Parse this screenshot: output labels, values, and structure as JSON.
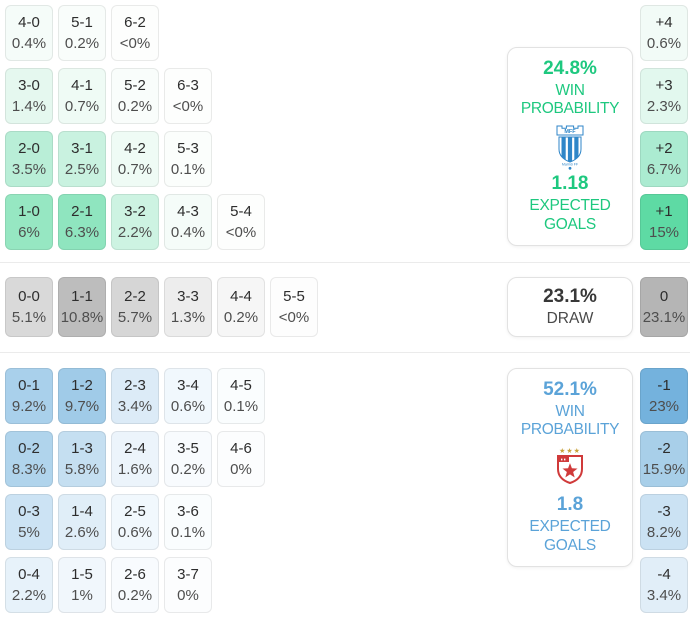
{
  "chart_data": {
    "type": "heatmap",
    "description": "Correct score probability matrix with win probability and expected goals panels",
    "home": {
      "accent": "#1ec87f",
      "panel": {
        "win_value": "24.8%",
        "win_label": "WIN PROBABILITY",
        "xg_value": "1.18",
        "xg_label": "EXPECTED GOALS"
      },
      "logo": {
        "banner": "MFF",
        "name": "Malmö FF"
      },
      "rows": [
        [
          {
            "score": "4-0",
            "pct": "0.4%",
            "bg": "#f5fcf9"
          },
          {
            "score": "5-1",
            "pct": "0.2%",
            "bg": "#f9fdfb"
          },
          {
            "score": "6-2",
            "pct": "<0%",
            "bg": "#fdfefd"
          }
        ],
        [
          {
            "score": "3-0",
            "pct": "1.4%",
            "bg": "#e5f8ef"
          },
          {
            "score": "4-1",
            "pct": "0.7%",
            "bg": "#effbf5"
          },
          {
            "score": "5-2",
            "pct": "0.2%",
            "bg": "#f9fdfb"
          },
          {
            "score": "6-3",
            "pct": "<0%",
            "bg": "#fdfefd"
          }
        ],
        [
          {
            "score": "2-0",
            "pct": "3.5%",
            "bg": "#b9eed7"
          },
          {
            "score": "3-1",
            "pct": "2.5%",
            "bg": "#c9f2e0"
          },
          {
            "score": "4-2",
            "pct": "0.7%",
            "bg": "#effbf5"
          },
          {
            "score": "5-3",
            "pct": "0.1%",
            "bg": "#fbfefc"
          }
        ],
        [
          {
            "score": "1-0",
            "pct": "6%",
            "bg": "#96e7c2"
          },
          {
            "score": "2-1",
            "pct": "6.3%",
            "bg": "#8fe5bf"
          },
          {
            "score": "3-2",
            "pct": "2.2%",
            "bg": "#cdf3e2"
          },
          {
            "score": "4-3",
            "pct": "0.4%",
            "bg": "#f5fcf9"
          },
          {
            "score": "5-4",
            "pct": "<0%",
            "bg": "#fdfefd"
          }
        ]
      ],
      "margins": [
        {
          "label": "+4",
          "pct": "0.6%",
          "bg": "#f2fbf7"
        },
        {
          "label": "+3",
          "pct": "2.3%",
          "bg": "#e2f8ee"
        },
        {
          "label": "+2",
          "pct": "6.7%",
          "bg": "#abebd1"
        },
        {
          "label": "+1",
          "pct": "15%",
          "bg": "#5edaa4"
        }
      ]
    },
    "draw": {
      "panel": {
        "value": "23.1%",
        "label": "DRAW"
      },
      "cells": [
        {
          "score": "0-0",
          "pct": "5.1%",
          "bg": "#d9d9d9"
        },
        {
          "score": "1-1",
          "pct": "10.8%",
          "bg": "#bdbdbd"
        },
        {
          "score": "2-2",
          "pct": "5.7%",
          "bg": "#d6d6d6"
        },
        {
          "score": "3-3",
          "pct": "1.3%",
          "bg": "#ededed"
        },
        {
          "score": "4-4",
          "pct": "0.2%",
          "bg": "#f6f6f6"
        },
        {
          "score": "5-5",
          "pct": "<0%",
          "bg": "#fdfdfd"
        }
      ],
      "margin": {
        "label": "0",
        "pct": "23.1%",
        "bg": "#b5b5b5"
      }
    },
    "away": {
      "accent": "#5ba3d8",
      "panel": {
        "win_value": "52.1%",
        "win_label": "WIN PROBABILITY",
        "xg_value": "1.8",
        "xg_label": "EXPECTED GOALS"
      },
      "rows": [
        [
          {
            "score": "0-1",
            "pct": "9.2%",
            "bg": "#a9d0eb"
          },
          {
            "score": "1-2",
            "pct": "9.7%",
            "bg": "#a0cbe8"
          },
          {
            "score": "2-3",
            "pct": "3.4%",
            "bg": "#dcebf7"
          },
          {
            "score": "3-4",
            "pct": "0.6%",
            "bg": "#f1f8fd"
          },
          {
            "score": "4-5",
            "pct": "0.1%",
            "bg": "#fafdfe"
          }
        ],
        [
          {
            "score": "0-2",
            "pct": "8.3%",
            "bg": "#b0d4ec"
          },
          {
            "score": "1-3",
            "pct": "5.8%",
            "bg": "#c5dff1"
          },
          {
            "score": "2-4",
            "pct": "1.6%",
            "bg": "#ecf4fb"
          },
          {
            "score": "3-5",
            "pct": "0.2%",
            "bg": "#f8fbfe"
          },
          {
            "score": "4-6",
            "pct": "0%",
            "bg": "#fcfdfe"
          }
        ],
        [
          {
            "score": "0-3",
            "pct": "5%",
            "bg": "#cce3f4"
          },
          {
            "score": "1-4",
            "pct": "2.6%",
            "bg": "#e0eef8"
          },
          {
            "score": "2-5",
            "pct": "0.6%",
            "bg": "#f1f8fd"
          },
          {
            "score": "3-6",
            "pct": "0.1%",
            "bg": "#fafdfe"
          }
        ],
        [
          {
            "score": "0-4",
            "pct": "2.2%",
            "bg": "#e7f2fa"
          },
          {
            "score": "1-5",
            "pct": "1%",
            "bg": "#f1f7fc"
          },
          {
            "score": "2-6",
            "pct": "0.2%",
            "bg": "#f8fbfe"
          },
          {
            "score": "3-7",
            "pct": "0%",
            "bg": "#fcfdfe"
          }
        ]
      ],
      "margins": [
        {
          "label": "-1",
          "pct": "23%",
          "bg": "#74b2dd"
        },
        {
          "label": "-2",
          "pct": "15.9%",
          "bg": "#a8cfe9"
        },
        {
          "label": "-3",
          "pct": "8.2%",
          "bg": "#cbe2f3"
        },
        {
          "label": "-4",
          "pct": "3.4%",
          "bg": "#e1eef8"
        }
      ]
    }
  }
}
